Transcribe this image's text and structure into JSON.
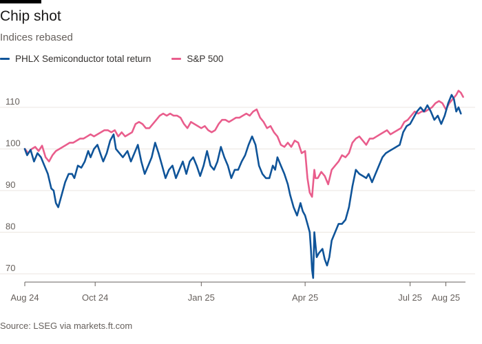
{
  "header": {
    "title": "Chip shot",
    "subtitle": "Indices rebased"
  },
  "source": "Source: LSEG via markets.ft.com",
  "chart_data": {
    "type": "line",
    "title": "Chip shot",
    "subtitle": "Indices rebased",
    "xlabel": "",
    "ylabel": "",
    "ylim": [
      67,
      117
    ],
    "yticks": [
      70,
      80,
      90,
      100,
      110
    ],
    "xrange": [
      "2024-08-01",
      "2025-08-18"
    ],
    "xticks": [
      {
        "date": "2024-08-01",
        "label": "Aug 24"
      },
      {
        "date": "2024-10-01",
        "label": "Oct 24"
      },
      {
        "date": "2025-01-01",
        "label": "Jan 25"
      },
      {
        "date": "2025-04-01",
        "label": "Apr 25"
      },
      {
        "date": "2025-07-01",
        "label": "Jul 25"
      },
      {
        "date": "2025-08-01",
        "label": "Aug 25"
      }
    ],
    "grid": true,
    "legend_position": "top-left",
    "series": [
      {
        "name": "PHLX Semiconductor total return",
        "color": "#0f5499",
        "points": [
          [
            "2024-08-01",
            100
          ],
          [
            "2024-08-03",
            98.5
          ],
          [
            "2024-08-06",
            99.8
          ],
          [
            "2024-08-09",
            97
          ],
          [
            "2024-08-12",
            99
          ],
          [
            "2024-08-15",
            98
          ],
          [
            "2024-08-18",
            96
          ],
          [
            "2024-08-21",
            94
          ],
          [
            "2024-08-24",
            90.5
          ],
          [
            "2024-08-26",
            90
          ],
          [
            "2024-08-28",
            87
          ],
          [
            "2024-08-30",
            86
          ],
          [
            "2024-09-02",
            89
          ],
          [
            "2024-09-05",
            92
          ],
          [
            "2024-09-08",
            94
          ],
          [
            "2024-09-11",
            94
          ],
          [
            "2024-09-13",
            93
          ],
          [
            "2024-09-16",
            96
          ],
          [
            "2024-09-19",
            95.5
          ],
          [
            "2024-09-22",
            97
          ],
          [
            "2024-09-25",
            99.5
          ],
          [
            "2024-09-27",
            98
          ],
          [
            "2024-09-30",
            100
          ],
          [
            "2024-10-03",
            101
          ],
          [
            "2024-10-06",
            98.5
          ],
          [
            "2024-10-08",
            97
          ],
          [
            "2024-10-11",
            99
          ],
          [
            "2024-10-14",
            102
          ],
          [
            "2024-10-17",
            103.5
          ],
          [
            "2024-10-19",
            100
          ],
          [
            "2024-10-22",
            99
          ],
          [
            "2024-10-25",
            98
          ],
          [
            "2024-10-29",
            99.5
          ],
          [
            "2024-11-01",
            97
          ],
          [
            "2024-11-04",
            99
          ],
          [
            "2024-11-07",
            101
          ],
          [
            "2024-11-10",
            97
          ],
          [
            "2024-11-13",
            94
          ],
          [
            "2024-11-16",
            96
          ],
          [
            "2024-11-19",
            98
          ],
          [
            "2024-11-22",
            101.5
          ],
          [
            "2024-11-25",
            99
          ],
          [
            "2024-11-28",
            96
          ],
          [
            "2024-12-01",
            93
          ],
          [
            "2024-12-04",
            95
          ],
          [
            "2024-12-07",
            96
          ],
          [
            "2024-12-10",
            93
          ],
          [
            "2024-12-13",
            95
          ],
          [
            "2024-12-16",
            97
          ],
          [
            "2024-12-19",
            94
          ],
          [
            "2024-12-22",
            97
          ],
          [
            "2024-12-25",
            98
          ],
          [
            "2024-12-28",
            96
          ],
          [
            "2024-12-31",
            93.5
          ],
          [
            "2025-01-03",
            96
          ],
          [
            "2025-01-06",
            99.5
          ],
          [
            "2025-01-09",
            96
          ],
          [
            "2025-01-12",
            95
          ],
          [
            "2025-01-15",
            97
          ],
          [
            "2025-01-18",
            100.5
          ],
          [
            "2025-01-21",
            98
          ],
          [
            "2025-01-24",
            96
          ],
          [
            "2025-01-27",
            93
          ],
          [
            "2025-01-30",
            95
          ],
          [
            "2025-02-02",
            95
          ],
          [
            "2025-02-05",
            97
          ],
          [
            "2025-02-08",
            98.5
          ],
          [
            "2025-02-11",
            101
          ],
          [
            "2025-02-14",
            103
          ],
          [
            "2025-02-17",
            101
          ],
          [
            "2025-02-20",
            96
          ],
          [
            "2025-02-23",
            94
          ],
          [
            "2025-02-26",
            93
          ],
          [
            "2025-03-01",
            93
          ],
          [
            "2025-03-04",
            96
          ],
          [
            "2025-03-06",
            95
          ],
          [
            "2025-03-08",
            98
          ],
          [
            "2025-03-11",
            96
          ],
          [
            "2025-03-14",
            94
          ],
          [
            "2025-03-17",
            91.5
          ],
          [
            "2025-03-19",
            89
          ],
          [
            "2025-03-22",
            86
          ],
          [
            "2025-03-25",
            84
          ],
          [
            "2025-03-28",
            87
          ],
          [
            "2025-03-30",
            85
          ],
          [
            "2025-04-01",
            84
          ],
          [
            "2025-04-03",
            82
          ],
          [
            "2025-04-05",
            80
          ],
          [
            "2025-04-06",
            76
          ],
          [
            "2025-04-07",
            71
          ],
          [
            "2025-04-08",
            69
          ],
          [
            "2025-04-09",
            80
          ],
          [
            "2025-04-10",
            77
          ],
          [
            "2025-04-11",
            74
          ],
          [
            "2025-04-13",
            75
          ],
          [
            "2025-04-16",
            76
          ],
          [
            "2025-04-18",
            73.5
          ],
          [
            "2025-04-20",
            72
          ],
          [
            "2025-04-22",
            74
          ],
          [
            "2025-04-24",
            78
          ],
          [
            "2025-04-27",
            80
          ],
          [
            "2025-04-30",
            82
          ],
          [
            "2025-05-03",
            82
          ],
          [
            "2025-05-06",
            83
          ],
          [
            "2025-05-09",
            86
          ],
          [
            "2025-05-12",
            91
          ],
          [
            "2025-05-15",
            95
          ],
          [
            "2025-05-18",
            94
          ],
          [
            "2025-05-21",
            93.5
          ],
          [
            "2025-05-24",
            93
          ],
          [
            "2025-05-26",
            94
          ],
          [
            "2025-05-29",
            92
          ],
          [
            "2025-06-01",
            94
          ],
          [
            "2025-06-04",
            96
          ],
          [
            "2025-06-07",
            98
          ],
          [
            "2025-06-10",
            99
          ],
          [
            "2025-06-13",
            99.5
          ],
          [
            "2025-06-16",
            100
          ],
          [
            "2025-06-19",
            100.5
          ],
          [
            "2025-06-22",
            101
          ],
          [
            "2025-06-25",
            104
          ],
          [
            "2025-06-28",
            105.5
          ],
          [
            "2025-07-01",
            106
          ],
          [
            "2025-07-04",
            107.5
          ],
          [
            "2025-07-07",
            109
          ],
          [
            "2025-07-10",
            110
          ],
          [
            "2025-07-13",
            109
          ],
          [
            "2025-07-16",
            110.5
          ],
          [
            "2025-07-19",
            109
          ],
          [
            "2025-07-22",
            107
          ],
          [
            "2025-07-25",
            108
          ],
          [
            "2025-07-28",
            106
          ],
          [
            "2025-07-31",
            108
          ],
          [
            "2025-08-03",
            111
          ],
          [
            "2025-08-06",
            113
          ],
          [
            "2025-08-08",
            112
          ],
          [
            "2025-08-10",
            109
          ],
          [
            "2025-08-12",
            110
          ],
          [
            "2025-08-14",
            108.5
          ]
        ]
      },
      {
        "name": "S&P 500",
        "color": "#e95d8c",
        "points": [
          [
            "2024-08-01",
            100
          ],
          [
            "2024-08-04",
            99
          ],
          [
            "2024-08-07",
            100
          ],
          [
            "2024-08-10",
            100.5
          ],
          [
            "2024-08-13",
            99.5
          ],
          [
            "2024-08-16",
            100.8
          ],
          [
            "2024-08-19",
            98
          ],
          [
            "2024-08-22",
            97
          ],
          [
            "2024-08-25",
            98.5
          ],
          [
            "2024-08-28",
            99.5
          ],
          [
            "2024-08-31",
            100
          ],
          [
            "2024-09-03",
            100.5
          ],
          [
            "2024-09-06",
            101
          ],
          [
            "2024-09-09",
            101.5
          ],
          [
            "2024-09-12",
            101.5
          ],
          [
            "2024-09-15",
            102
          ],
          [
            "2024-09-18",
            102.5
          ],
          [
            "2024-09-21",
            102.5
          ],
          [
            "2024-09-24",
            103
          ],
          [
            "2024-09-27",
            103.5
          ],
          [
            "2024-09-30",
            103
          ],
          [
            "2024-10-03",
            103.5
          ],
          [
            "2024-10-06",
            104
          ],
          [
            "2024-10-09",
            104.5
          ],
          [
            "2024-10-12",
            104.5
          ],
          [
            "2024-10-15",
            104
          ],
          [
            "2024-10-18",
            104.5
          ],
          [
            "2024-10-21",
            103
          ],
          [
            "2024-10-24",
            104
          ],
          [
            "2024-10-27",
            103
          ],
          [
            "2024-10-30",
            103.5
          ],
          [
            "2024-11-02",
            104
          ],
          [
            "2024-11-05",
            106
          ],
          [
            "2024-11-08",
            106.5
          ],
          [
            "2024-11-11",
            106
          ],
          [
            "2024-11-14",
            105
          ],
          [
            "2024-11-17",
            105
          ],
          [
            "2024-11-20",
            106
          ],
          [
            "2024-11-23",
            107
          ],
          [
            "2024-11-26",
            108
          ],
          [
            "2024-11-29",
            108.5
          ],
          [
            "2024-12-02",
            108
          ],
          [
            "2024-12-05",
            108.5
          ],
          [
            "2024-12-08",
            108
          ],
          [
            "2024-12-11",
            108
          ],
          [
            "2024-12-14",
            107.5
          ],
          [
            "2024-12-17",
            106
          ],
          [
            "2024-12-20",
            105
          ],
          [
            "2024-12-23",
            106.5
          ],
          [
            "2024-12-26",
            106
          ],
          [
            "2024-12-29",
            105.5
          ],
          [
            "2025-01-01",
            105
          ],
          [
            "2025-01-04",
            105.5
          ],
          [
            "2025-01-07",
            104.5
          ],
          [
            "2025-01-10",
            104
          ],
          [
            "2025-01-13",
            104.5
          ],
          [
            "2025-01-16",
            106
          ],
          [
            "2025-01-19",
            107
          ],
          [
            "2025-01-22",
            107
          ],
          [
            "2025-01-25",
            106.5
          ],
          [
            "2025-01-28",
            107
          ],
          [
            "2025-01-31",
            107.5
          ],
          [
            "2025-02-03",
            107.5
          ],
          [
            "2025-02-06",
            108
          ],
          [
            "2025-02-09",
            108.5
          ],
          [
            "2025-02-12",
            108
          ],
          [
            "2025-02-15",
            109
          ],
          [
            "2025-02-18",
            109.5
          ],
          [
            "2025-02-21",
            107.5
          ],
          [
            "2025-02-24",
            106.5
          ],
          [
            "2025-02-27",
            105
          ],
          [
            "2025-03-02",
            105.5
          ],
          [
            "2025-03-05",
            104
          ],
          [
            "2025-03-08",
            103
          ],
          [
            "2025-03-11",
            101
          ],
          [
            "2025-03-14",
            100.5
          ],
          [
            "2025-03-17",
            101.5
          ],
          [
            "2025-03-20",
            100.5
          ],
          [
            "2025-03-23",
            102
          ],
          [
            "2025-03-26",
            101.5
          ],
          [
            "2025-03-29",
            99
          ],
          [
            "2025-04-01",
            99.5
          ],
          [
            "2025-04-03",
            93
          ],
          [
            "2025-04-05",
            89.5
          ],
          [
            "2025-04-07",
            88.5
          ],
          [
            "2025-04-09",
            95
          ],
          [
            "2025-04-10",
            93
          ],
          [
            "2025-04-12",
            93
          ],
          [
            "2025-04-15",
            94.5
          ],
          [
            "2025-04-18",
            93.5
          ],
          [
            "2025-04-21",
            91.5
          ],
          [
            "2025-04-24",
            95
          ],
          [
            "2025-04-27",
            96
          ],
          [
            "2025-04-30",
            97
          ],
          [
            "2025-05-03",
            98.5
          ],
          [
            "2025-05-06",
            98
          ],
          [
            "2025-05-09",
            99
          ],
          [
            "2025-05-12",
            101.5
          ],
          [
            "2025-05-15",
            102.5
          ],
          [
            "2025-05-18",
            103
          ],
          [
            "2025-05-21",
            102
          ],
          [
            "2025-05-24",
            101
          ],
          [
            "2025-05-27",
            102.5
          ],
          [
            "2025-05-30",
            102.5
          ],
          [
            "2025-06-02",
            103
          ],
          [
            "2025-06-05",
            103.5
          ],
          [
            "2025-06-08",
            104
          ],
          [
            "2025-06-11",
            104.5
          ],
          [
            "2025-06-14",
            103.5
          ],
          [
            "2025-06-17",
            104
          ],
          [
            "2025-06-20",
            104.5
          ],
          [
            "2025-06-23",
            105
          ],
          [
            "2025-06-26",
            106.5
          ],
          [
            "2025-06-29",
            107
          ],
          [
            "2025-07-02",
            108
          ],
          [
            "2025-07-05",
            109
          ],
          [
            "2025-07-08",
            108.5
          ],
          [
            "2025-07-11",
            109
          ],
          [
            "2025-07-14",
            109
          ],
          [
            "2025-07-17",
            109.5
          ],
          [
            "2025-07-20",
            110
          ],
          [
            "2025-07-23",
            111
          ],
          [
            "2025-07-26",
            111.5
          ],
          [
            "2025-07-29",
            111
          ],
          [
            "2025-08-01",
            109.5
          ],
          [
            "2025-08-04",
            111
          ],
          [
            "2025-08-07",
            112
          ],
          [
            "2025-08-10",
            113
          ],
          [
            "2025-08-12",
            114
          ],
          [
            "2025-08-14",
            113.5
          ],
          [
            "2025-08-16",
            112.5
          ]
        ]
      }
    ]
  }
}
